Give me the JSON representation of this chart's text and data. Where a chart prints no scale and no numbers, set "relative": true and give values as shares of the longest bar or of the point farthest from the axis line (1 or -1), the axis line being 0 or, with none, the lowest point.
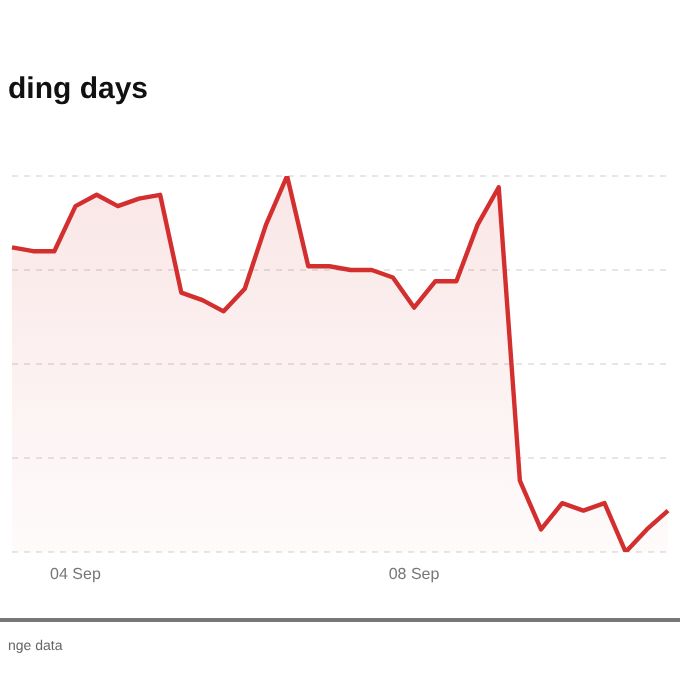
{
  "chart_data": {
    "type": "area",
    "title": "ding days",
    "annotations": [
      "nge data"
    ],
    "categories": [
      null,
      null,
      null,
      "04 Sep",
      null,
      null,
      null,
      null,
      null,
      null,
      null,
      null,
      null,
      null,
      null,
      null,
      null,
      null,
      null,
      "08 Sep",
      null,
      null,
      null,
      null,
      null,
      null,
      null,
      null,
      null,
      null,
      null,
      null
    ],
    "series": [
      {
        "color": "#d32f2f",
        "values": [
          0.81,
          0.8,
          0.8,
          0.92,
          0.95,
          0.92,
          0.94,
          0.95,
          0.69,
          0.67,
          0.64,
          0.7,
          0.87,
          1,
          0.76,
          0.76,
          0.75,
          0.75,
          0.73,
          0.65,
          0.72,
          0.72,
          0.87,
          0.97,
          0.19,
          0.06,
          0.13,
          0.11,
          0.13,
          0,
          0.06,
          0.11
        ]
      }
    ],
    "relative": true,
    "grid": "y"
  }
}
